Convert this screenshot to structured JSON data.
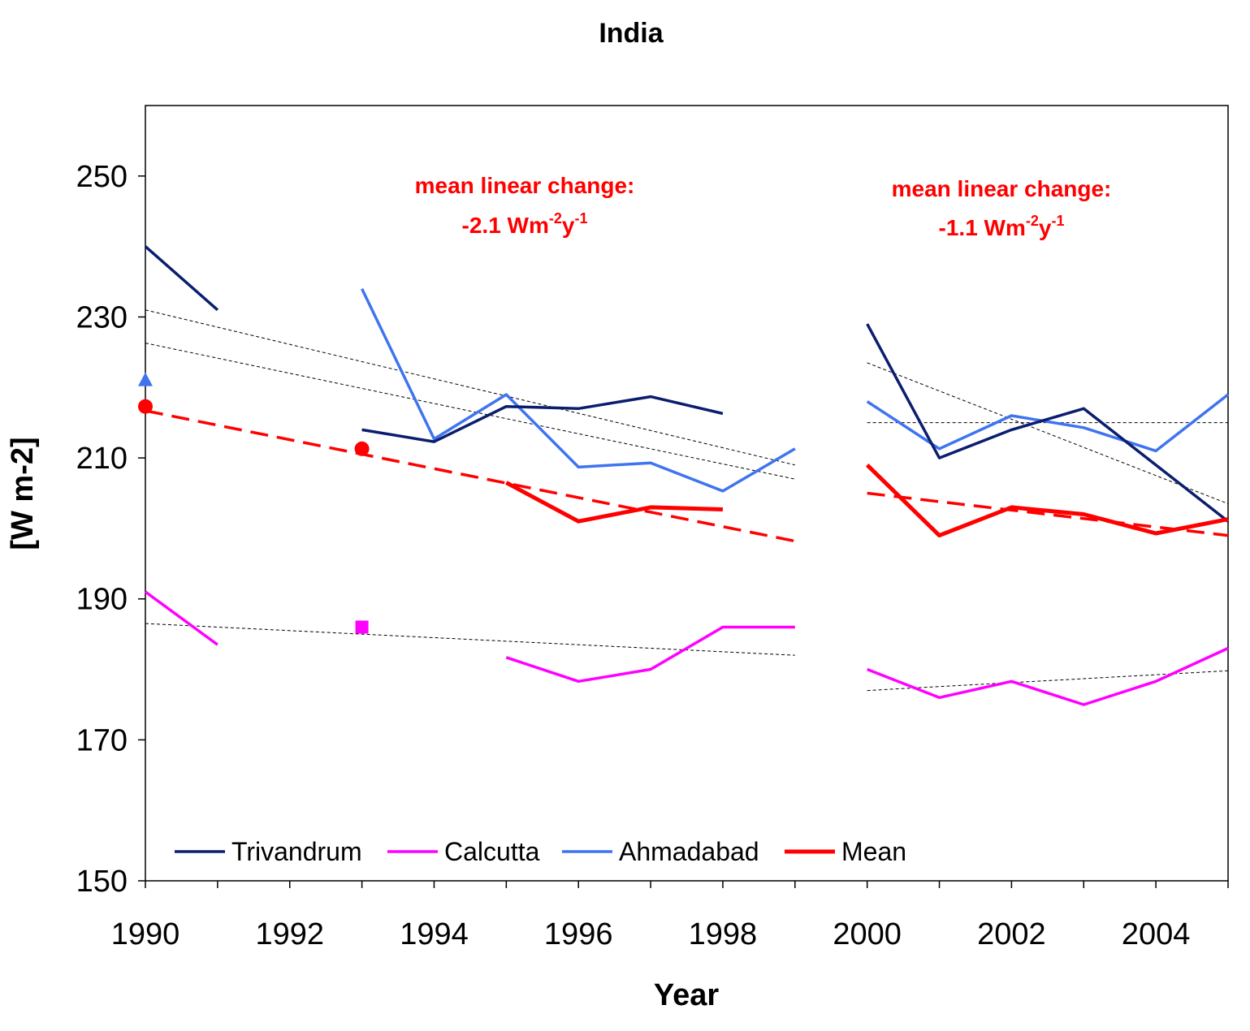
{
  "chart_data": {
    "type": "line",
    "title": "India",
    "xlabel": "Year",
    "ylabel": "[W m-2]",
    "xlim": [
      1990,
      2005
    ],
    "ylim": [
      150,
      260
    ],
    "x_ticks": [
      "1990",
      "1992",
      "1994",
      "1996",
      "1998",
      "2000",
      "2002",
      "2004"
    ],
    "y_ticks": [
      "150",
      "170",
      "190",
      "210",
      "230",
      "250"
    ],
    "grid": false,
    "legend_position": "bottom-left, inside plot",
    "colors": {
      "Trivandrum": "#0b1e6e",
      "Calcutta": "#ff00ff",
      "Ahmadabad": "#3f74f0",
      "Mean": "#ff0000",
      "trend": "#000000"
    },
    "series": [
      {
        "name": "Trivandrum",
        "segments": [
          [
            [
              1990,
              240.0
            ],
            [
              1991,
              231.0
            ]
          ],
          [
            [
              1993,
              214.0
            ],
            [
              1994,
              212.3
            ],
            [
              1995,
              217.3
            ],
            [
              1996,
              217.0
            ],
            [
              1997,
              218.7
            ],
            [
              1998,
              216.3
            ]
          ],
          [
            [
              2000,
              229.0
            ],
            [
              2001,
              210.0
            ],
            [
              2002,
              214.0
            ],
            [
              2003,
              217.0
            ],
            [
              2004,
              209.0
            ],
            [
              2005,
              201.0
            ]
          ]
        ]
      },
      {
        "name": "Calcutta",
        "segments": [
          [
            [
              1990,
              191.0
            ],
            [
              1991,
              183.5
            ]
          ],
          [
            [
              1995,
              181.7
            ],
            [
              1996,
              178.3
            ],
            [
              1997,
              180.0
            ],
            [
              1998,
              186.0
            ],
            [
              1999,
              186.0
            ]
          ],
          [
            [
              2000,
              180.0
            ],
            [
              2001,
              176.0
            ],
            [
              2002,
              178.3
            ],
            [
              2003,
              175.0
            ],
            [
              2004,
              178.3
            ],
            [
              2005,
              183.0
            ]
          ]
        ]
      },
      {
        "name": "Ahmadabad",
        "segments": [
          [
            [
              1993,
              234.0
            ],
            [
              1994,
              212.7
            ],
            [
              1995,
              219.0
            ],
            [
              1996,
              208.7
            ],
            [
              1997,
              209.3
            ],
            [
              1998,
              205.3
            ],
            [
              1999,
              211.3
            ]
          ],
          [
            [
              2000,
              218.0
            ],
            [
              2001,
              211.3
            ],
            [
              2002,
              216.0
            ],
            [
              2003,
              214.3
            ],
            [
              2004,
              211.0
            ],
            [
              2005,
              219.0
            ]
          ]
        ]
      },
      {
        "name": "Mean",
        "segments": [
          [
            [
              1995,
              206.5
            ],
            [
              1996,
              201.0
            ],
            [
              1997,
              203.0
            ],
            [
              1998,
              202.7
            ]
          ],
          [
            [
              2000,
              209.0
            ],
            [
              2001,
              199.0
            ],
            [
              2002,
              203.0
            ],
            [
              2003,
              202.0
            ],
            [
              2004,
              199.3
            ],
            [
              2005,
              201.3
            ]
          ]
        ]
      }
    ],
    "markers": [
      {
        "series": "Ahmadabad",
        "shape": "triangle",
        "x": 1990,
        "y": 221.0
      },
      {
        "series": "Mean",
        "shape": "circle",
        "x": 1990,
        "y": 217.3
      },
      {
        "series": "Mean",
        "shape": "circle",
        "x": 1993,
        "y": 211.3
      },
      {
        "series": "Calcutta",
        "shape": "square",
        "x": 1993,
        "y": 186.0
      }
    ],
    "mean_trends": [
      {
        "x": [
          1990,
          1999
        ],
        "y": [
          216.7,
          198.2
        ],
        "style": "dashed"
      },
      {
        "x": [
          2000,
          2005
        ],
        "y": [
          205.0,
          199.0
        ],
        "style": "dashed"
      }
    ],
    "station_trends": [
      {
        "x": [
          1990,
          1999
        ],
        "y": [
          231.0,
          209.0
        ]
      },
      {
        "x": [
          1990,
          1999
        ],
        "y": [
          226.3,
          207.0
        ]
      },
      {
        "x": [
          1990,
          1999
        ],
        "y": [
          186.5,
          182.0
        ]
      },
      {
        "x": [
          2000,
          2005
        ],
        "y": [
          223.5,
          203.5
        ]
      },
      {
        "x": [
          2000,
          2005
        ],
        "y": [
          215.0,
          215.0
        ]
      },
      {
        "x": [
          2000,
          2005
        ],
        "y": [
          177.0,
          179.8
        ]
      }
    ],
    "annotations": [
      {
        "line1": "mean linear change:",
        "value": "-2.1 Wm",
        "sup1": "-2",
        "unit": "y",
        "sup2": "-1"
      },
      {
        "line1": "mean linear change:",
        "value": "-1.1 Wm",
        "sup1": "-2",
        "unit": "y",
        "sup2": "-1"
      }
    ]
  }
}
